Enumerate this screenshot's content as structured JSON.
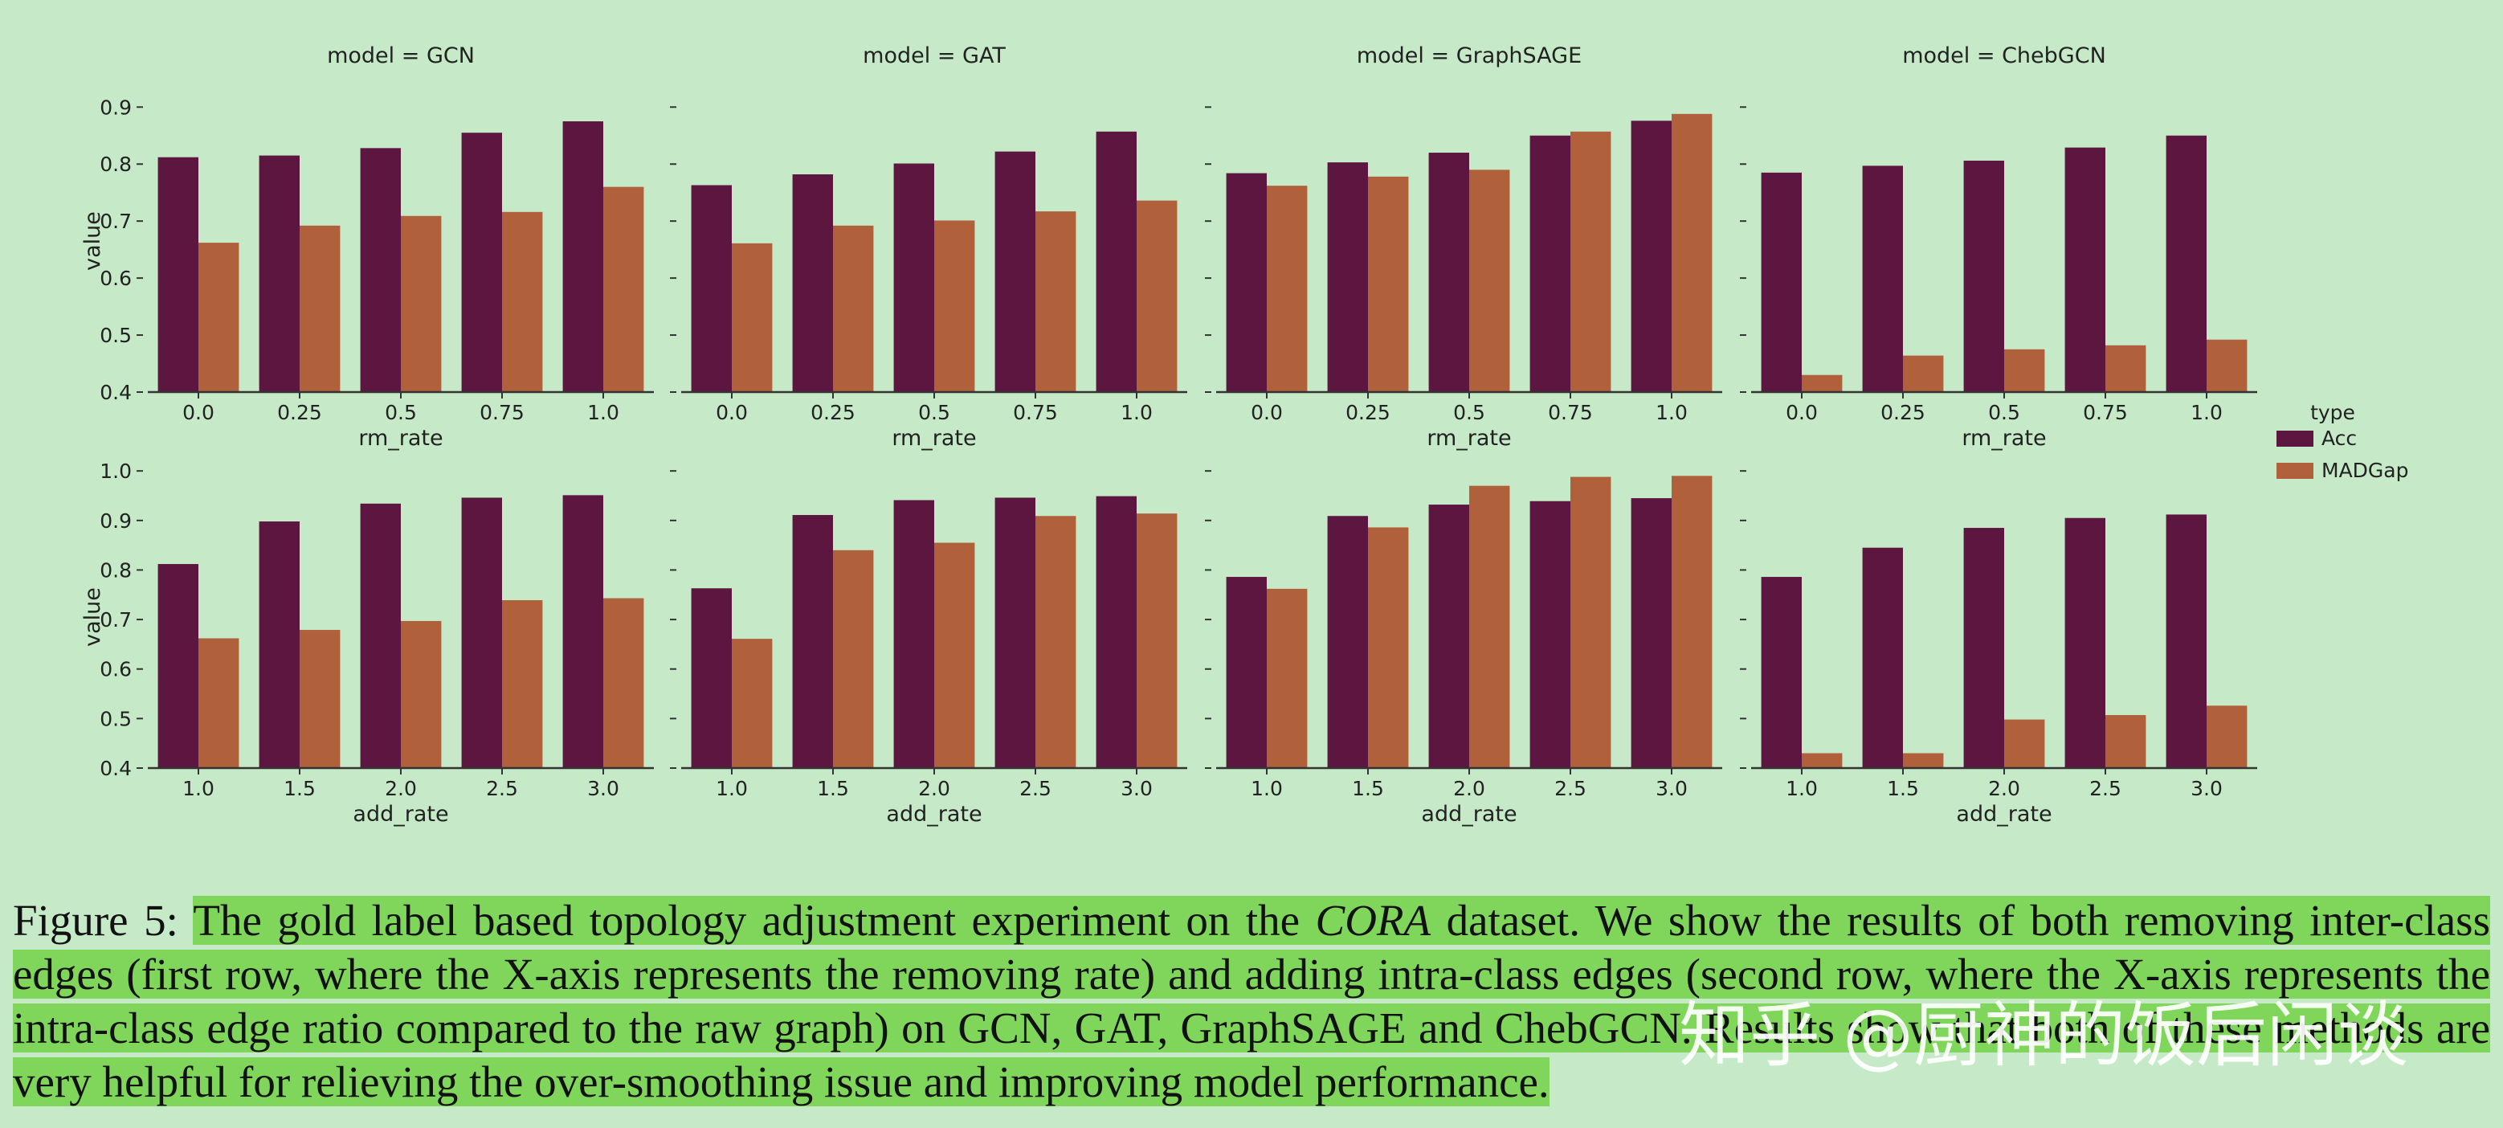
{
  "chart_data": [
    {
      "type": "bar",
      "title": "model = GCN",
      "xlabel": "rm_rate",
      "ylabel": "value",
      "categories": [
        "0.0",
        "0.25",
        "0.5",
        "0.75",
        "1.0"
      ],
      "series": [
        {
          "name": "Acc",
          "color": "#5c1640",
          "values": [
            0.812,
            0.815,
            0.828,
            0.855,
            0.875
          ]
        },
        {
          "name": "MADGap",
          "color": "#b0603a",
          "values": [
            0.662,
            0.692,
            0.709,
            0.716,
            0.76
          ]
        }
      ],
      "ylim": [
        0.4,
        0.93
      ],
      "yticks": [
        0.4,
        0.5,
        0.6,
        0.7,
        0.8,
        0.9
      ],
      "ytick_labels": true
    },
    {
      "type": "bar",
      "title": "model = GAT",
      "xlabel": "rm_rate",
      "categories": [
        "0.0",
        "0.25",
        "0.5",
        "0.75",
        "1.0"
      ],
      "series": [
        {
          "name": "Acc",
          "color": "#5c1640",
          "values": [
            0.763,
            0.782,
            0.801,
            0.822,
            0.857
          ]
        },
        {
          "name": "MADGap",
          "color": "#b0603a",
          "values": [
            0.661,
            0.692,
            0.701,
            0.717,
            0.736
          ]
        }
      ],
      "ylim": [
        0.4,
        0.93
      ],
      "yticks": [
        0.4,
        0.5,
        0.6,
        0.7,
        0.8,
        0.9
      ],
      "ytick_labels": false
    },
    {
      "type": "bar",
      "title": "model = GraphSAGE",
      "xlabel": "rm_rate",
      "categories": [
        "0.0",
        "0.25",
        "0.5",
        "0.75",
        "1.0"
      ],
      "series": [
        {
          "name": "Acc",
          "color": "#5c1640",
          "values": [
            0.784,
            0.803,
            0.82,
            0.85,
            0.876
          ]
        },
        {
          "name": "MADGap",
          "color": "#b0603a",
          "values": [
            0.762,
            0.778,
            0.79,
            0.857,
            0.888
          ]
        }
      ],
      "ylim": [
        0.4,
        0.93
      ],
      "yticks": [
        0.4,
        0.5,
        0.6,
        0.7,
        0.8,
        0.9
      ],
      "ytick_labels": false
    },
    {
      "type": "bar",
      "title": "model = ChebGCN",
      "xlabel": "rm_rate",
      "categories": [
        "0.0",
        "0.25",
        "0.5",
        "0.75",
        "1.0"
      ],
      "series": [
        {
          "name": "Acc",
          "color": "#5c1640",
          "values": [
            0.785,
            0.797,
            0.806,
            0.829,
            0.85
          ]
        },
        {
          "name": "MADGap",
          "color": "#b0603a",
          "values": [
            0.43,
            0.464,
            0.475,
            0.482,
            0.492
          ]
        }
      ],
      "ylim": [
        0.4,
        0.93
      ],
      "yticks": [
        0.4,
        0.5,
        0.6,
        0.7,
        0.8,
        0.9
      ],
      "ytick_labels": false,
      "legend_title": "type"
    },
    {
      "type": "bar",
      "xlabel": "add_rate",
      "ylabel": "value",
      "categories": [
        "1.0",
        "1.5",
        "2.0",
        "2.5",
        "3.0"
      ],
      "series": [
        {
          "name": "Acc",
          "color": "#5c1640",
          "values": [
            0.812,
            0.898,
            0.934,
            0.946,
            0.951
          ]
        },
        {
          "name": "MADGap",
          "color": "#b0603a",
          "values": [
            0.662,
            0.679,
            0.697,
            0.739,
            0.743
          ]
        }
      ],
      "ylim": [
        0.4,
        1.01
      ],
      "yticks": [
        0.4,
        0.5,
        0.6,
        0.7,
        0.8,
        0.9,
        {
          "value": 1,
          "label": "1.0"
        }
      ],
      "ytick_labels": true
    },
    {
      "type": "bar",
      "xlabel": "add_rate",
      "categories": [
        "1.0",
        "1.5",
        "2.0",
        "2.5",
        "3.0"
      ],
      "series": [
        {
          "name": "Acc",
          "color": "#5c1640",
          "values": [
            0.763,
            0.911,
            0.941,
            0.946,
            0.949
          ]
        },
        {
          "name": "MADGap",
          "color": "#b0603a",
          "values": [
            0.661,
            0.84,
            0.855,
            0.909,
            0.914
          ]
        }
      ],
      "ylim": [
        0.4,
        1.01
      ],
      "yticks": [
        0.4,
        0.5,
        0.6,
        0.7,
        0.8,
        0.9,
        {
          "value": 1,
          "label": "1.0"
        }
      ],
      "ytick_labels": false
    },
    {
      "type": "bar",
      "xlabel": "add_rate",
      "categories": [
        "1.0",
        "1.5",
        "2.0",
        "2.5",
        "3.0"
      ],
      "series": [
        {
          "name": "Acc",
          "color": "#5c1640",
          "values": [
            0.786,
            0.909,
            0.932,
            0.939,
            0.945
          ]
        },
        {
          "name": "MADGap",
          "color": "#b0603a",
          "values": [
            0.762,
            0.886,
            0.97,
            0.988,
            0.99
          ]
        }
      ],
      "ylim": [
        0.4,
        1.01
      ],
      "yticks": [
        0.4,
        0.5,
        0.6,
        0.7,
        0.8,
        0.9,
        {
          "value": 1,
          "label": "1.0"
        }
      ],
      "ytick_labels": false
    },
    {
      "type": "bar",
      "xlabel": "add_rate",
      "categories": [
        "1.0",
        "1.5",
        "2.0",
        "2.5",
        "3.0"
      ],
      "series": [
        {
          "name": "Acc",
          "color": "#5c1640",
          "values": [
            0.786,
            0.845,
            0.885,
            0.905,
            0.912
          ]
        },
        {
          "name": "MADGap",
          "color": "#b0603a",
          "values": [
            0.43,
            0.43,
            0.498,
            0.507,
            0.526
          ]
        }
      ],
      "ylim": [
        0.4,
        1.01
      ],
      "yticks": [
        0.4,
        0.5,
        0.6,
        0.7,
        0.8,
        0.9,
        {
          "value": 1,
          "label": "1.0"
        }
      ],
      "ytick_labels": false
    }
  ],
  "caption": {
    "label": "Figure 5:",
    "segments": [
      {
        "text": "The gold label based topology adjustment experiment on the ",
        "italic": false
      },
      {
        "text": "CORA",
        "italic": true
      },
      {
        "text": " dataset. We show the results of both removing inter-class edges (first row, where the X-axis represents the removing rate) and adding intra-class edges (second row, where the X-axis represents the intra-class edge ratio compared to the raw graph) on GCN, GAT, GraphSAGE and ChebGCN. Results show that both of these methods are very helpful for relieving the over-smoothing issue and improving model performance.",
        "italic": false
      }
    ]
  },
  "watermark": "知乎 @厨神的饭后闲谈"
}
